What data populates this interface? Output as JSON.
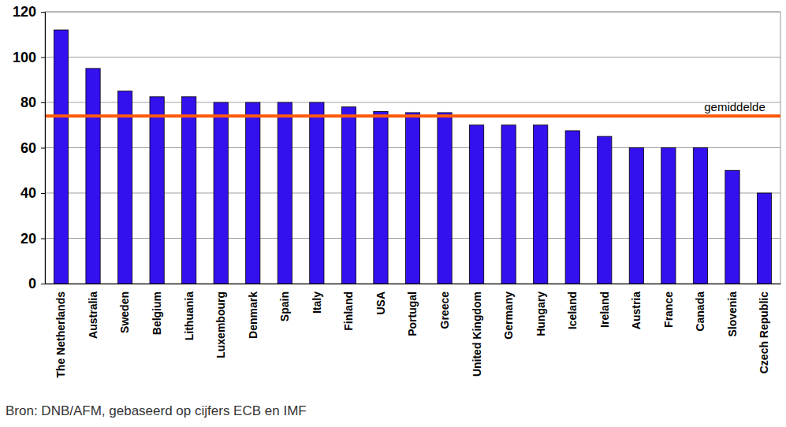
{
  "chart_data": {
    "type": "bar",
    "categories": [
      "The Netherlands",
      "Australia",
      "Sweden",
      "Belgium",
      "Lithuania",
      "Luxembourg",
      "Denmark",
      "Spain",
      "Italy",
      "Finland",
      "USA",
      "Portugal",
      "Greece",
      "United Kingdom",
      "Germany",
      "Hungary",
      "Iceland",
      "Ireland",
      "Austria",
      "France",
      "Canada",
      "Slovenia",
      "Czech Republic"
    ],
    "values": [
      112,
      95,
      85,
      82.5,
      82.5,
      80,
      80,
      80,
      80,
      78,
      76,
      75.5,
      75.5,
      70,
      70,
      70,
      67.5,
      65,
      60,
      60,
      60,
      50,
      40
    ],
    "color": "#3311ee",
    "ylim": [
      0,
      120
    ],
    "yticks": [
      0,
      20,
      40,
      60,
      80,
      100,
      120
    ],
    "grid": true,
    "average": {
      "label": "gemiddelde",
      "value": 74
    },
    "source": "Bron: DNB/AFM, gebaseerd op cijfers ECB en IMF"
  }
}
